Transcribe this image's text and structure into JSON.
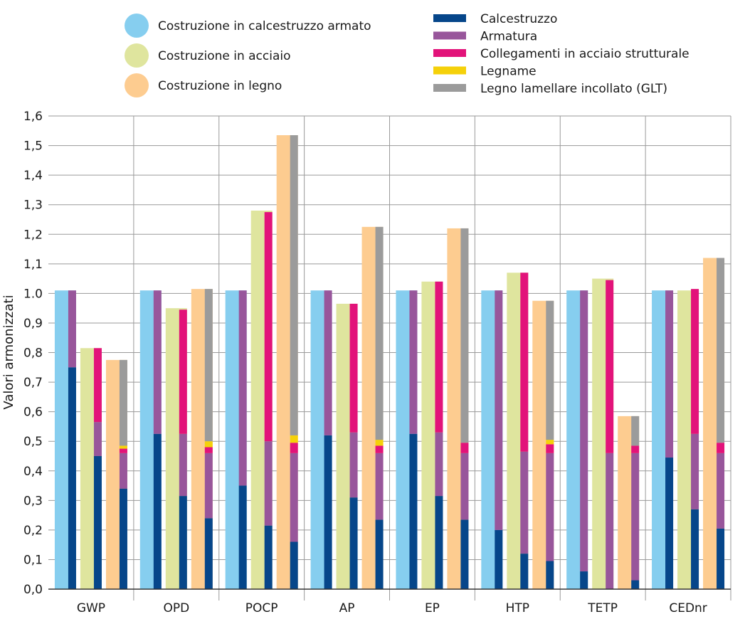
{
  "colors": {
    "total_concrete": "#86CEEF",
    "total_steel": "#DFE59E",
    "total_timber": "#FDCC90",
    "concrete": "#06468A",
    "reinforcement": "#98569B",
    "steel_connections": "#E2137A",
    "timber": "#F5D10A",
    "glt": "#9B9B9B",
    "grid": "#9a9a9a",
    "axis": "#333333"
  },
  "legend": {
    "totals": [
      {
        "key": "total_concrete",
        "label": "Costruzione in calcestruzzo armato"
      },
      {
        "key": "total_steel",
        "label": "Costruzione in acciaio"
      },
      {
        "key": "total_timber",
        "label": "Costruzione in legno"
      }
    ],
    "components": [
      {
        "key": "concrete",
        "label": "Calcestruzzo"
      },
      {
        "key": "reinforcement",
        "label": "Armatura"
      },
      {
        "key": "steel_connections",
        "label": "Collegamenti in acciaio strutturale"
      },
      {
        "key": "timber",
        "label": "Legname"
      },
      {
        "key": "glt",
        "label": "Legno lamellare incollato (GLT)"
      }
    ]
  },
  "chart_data": {
    "type": "bar",
    "title": "",
    "xlabel": "",
    "ylabel": "Valori armonizzati",
    "ylim": [
      0,
      1.6
    ],
    "y_ticks": [
      "0,0",
      "0,1",
      "0,2",
      "0,3",
      "0,4",
      "0,5",
      "0,6",
      "0,7",
      "0,8",
      "0,9",
      "1.0",
      "1,1",
      "1,2",
      "1,3",
      "1,4",
      "1,5",
      "1,6"
    ],
    "grid": true,
    "legend_position": "top",
    "categories": [
      "GWP",
      "OPD",
      "POCP",
      "AP",
      "EP",
      "HTP",
      "TETP",
      "CEDnr"
    ],
    "series": [
      {
        "name": "Costruzione in calcestruzzo armato",
        "total_key": "total_concrete",
        "totals": [
          1.01,
          1.01,
          1.01,
          1.01,
          1.01,
          1.01,
          1.01,
          1.01
        ],
        "components": [
          {
            "key": "concrete",
            "values": [
              0.75,
              0.525,
              0.35,
              0.52,
              0.525,
              0.2,
              0.06,
              0.445
            ]
          },
          {
            "key": "reinforcement",
            "values": [
              0.26,
              0.485,
              0.66,
              0.49,
              0.485,
              0.81,
              0.95,
              0.565
            ]
          }
        ]
      },
      {
        "name": "Costruzione in acciaio",
        "total_key": "total_steel",
        "totals": [
          0.815,
          0.95,
          1.28,
          0.965,
          1.04,
          1.07,
          1.05,
          1.01
        ],
        "components": [
          {
            "key": "concrete",
            "values": [
              0.45,
              0.315,
              0.215,
              0.31,
              0.315,
              0.12,
              0.0,
              0.27
            ]
          },
          {
            "key": "reinforcement",
            "values": [
              0.115,
              0.21,
              0.285,
              0.22,
              0.215,
              0.345,
              0.46,
              0.255
            ]
          },
          {
            "key": "steel_connections",
            "values": [
              0.25,
              0.42,
              0.775,
              0.435,
              0.51,
              0.605,
              0.585,
              0.49
            ]
          }
        ]
      },
      {
        "name": "Costruzione in legno",
        "total_key": "total_timber",
        "totals": [
          0.775,
          1.015,
          1.535,
          1.225,
          1.22,
          0.975,
          0.585,
          1.12
        ],
        "components": [
          {
            "key": "concrete",
            "values": [
              0.34,
              0.24,
              0.16,
              0.235,
              0.235,
              0.095,
              0.03,
              0.205
            ]
          },
          {
            "key": "reinforcement",
            "values": [
              0.12,
              0.22,
              0.3,
              0.225,
              0.225,
              0.365,
              0.43,
              0.255
            ]
          },
          {
            "key": "steel_connections",
            "values": [
              0.015,
              0.02,
              0.035,
              0.025,
              0.035,
              0.03,
              0.025,
              0.035
            ]
          },
          {
            "key": "timber",
            "values": [
              0.01,
              0.02,
              0.025,
              0.02,
              0.0,
              0.015,
              0.0,
              0.0
            ]
          },
          {
            "key": "glt",
            "values": [
              0.29,
              0.515,
              1.015,
              0.72,
              0.725,
              0.47,
              0.1,
              0.625
            ]
          }
        ]
      }
    ]
  }
}
